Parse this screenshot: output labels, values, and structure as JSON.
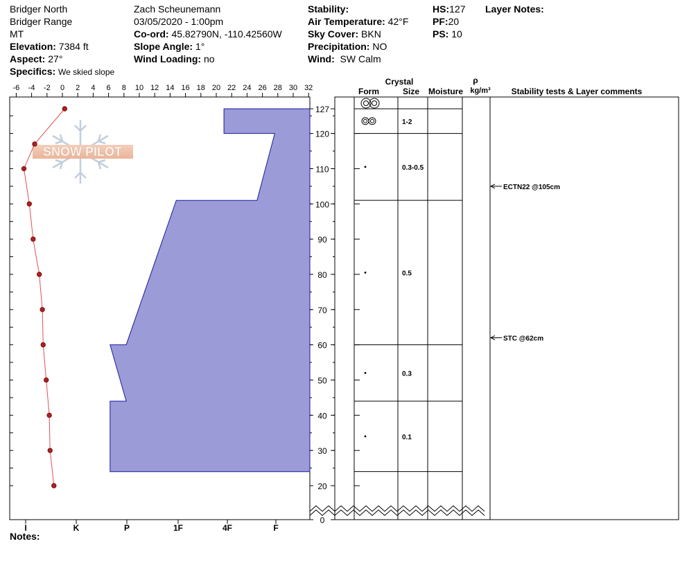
{
  "header": {
    "location_line1": "Bridger North",
    "location_line2": "Bridger Range",
    "location_line3": "MT",
    "elevation_label": "Elevation:",
    "elevation_value": "7384 ft",
    "aspect_label": "Aspect:",
    "aspect_value": "27°",
    "specifics_label": "Specifics:",
    "specifics_value": "We skied slope",
    "observer": "Zach Scheunemann",
    "datetime": "03/05/2020 - 1:00pm",
    "coord_label": "Co-ord:",
    "coord_value": "45.82790N, -110.42560W",
    "slope_label": "Slope Angle:",
    "slope_value": "1°",
    "wind_loading_label": "Wind Loading:",
    "wind_loading_value": "no",
    "stability_label": "Stability:",
    "stability_value": "",
    "air_temp_label": "Air Temperature:",
    "air_temp_value": "42°F",
    "sky_label": "Sky Cover:",
    "sky_value": "BKN",
    "precip_label": "Precipitation:",
    "precip_value": "NO",
    "wind_label": "Wind:",
    "wind_value": "SW Calm",
    "hs_label": "HS:",
    "hs_value": "127",
    "pf_label": "PF:",
    "pf_value": "20",
    "ps_label": "PS:",
    "ps_value": "10",
    "layer_notes_label": "Layer Notes:",
    "notes_label": "Notes:"
  },
  "logo": {
    "text": "SNOW PILOT"
  },
  "columns": {
    "crystal": "Crystal",
    "form": "Form",
    "size": "Size",
    "moisture": "Moisture",
    "rho": "ρ",
    "density_unit": "kg/m³",
    "comments": "Stability tests & Layer comments"
  },
  "chart_data": {
    "type": "snow-profile",
    "temperature_axis": {
      "ticks": [
        "-6",
        "-4",
        "-2",
        "0",
        "2",
        "4",
        "6",
        "8",
        "10",
        "12",
        "14",
        "16",
        "18",
        "20",
        "22",
        "24",
        "26",
        "28",
        "30",
        "32"
      ],
      "range": [
        -7,
        32
      ]
    },
    "hardness_axis": {
      "ticks": [
        "I",
        "K",
        "P",
        "1F",
        "4F",
        "F"
      ]
    },
    "depth_axis": {
      "ticks": [
        "127",
        "120",
        "110",
        "100",
        "90",
        "80",
        "70",
        "60",
        "50",
        "40",
        "30",
        "20",
        "0"
      ],
      "range": [
        0,
        127
      ]
    },
    "temperature_profile": [
      {
        "depth": 127,
        "temp": 0.3
      },
      {
        "depth": 117,
        "temp": -3.6
      },
      {
        "depth": 110,
        "temp": -5
      },
      {
        "depth": 100,
        "temp": -4.3
      },
      {
        "depth": 90,
        "temp": -3.8
      },
      {
        "depth": 80,
        "temp": -3
      },
      {
        "depth": 70,
        "temp": -2.6
      },
      {
        "depth": 60,
        "temp": -2.5
      },
      {
        "depth": 50,
        "temp": -2.1
      },
      {
        "depth": 40,
        "temp": -1.7
      },
      {
        "depth": 30,
        "temp": -1.6
      },
      {
        "depth": 20,
        "temp": -1.1
      }
    ],
    "hardness_polygon": [
      {
        "depth": 127,
        "hardness": 21
      },
      {
        "depth": 120,
        "hardness": 21
      },
      {
        "depth": 120,
        "hardness": 27.6
      },
      {
        "depth": 101,
        "hardness": 25.3
      },
      {
        "depth": 101,
        "hardness": 14.8
      },
      {
        "depth": 60,
        "hardness": 8.3
      },
      {
        "depth": 60,
        "hardness": 6.2
      },
      {
        "depth": 44,
        "hardness": 8.3
      },
      {
        "depth": 44,
        "hardness": 6.2
      },
      {
        "depth": 24,
        "hardness": 6.2
      },
      {
        "depth": 24,
        "hardness": 32
      }
    ],
    "layers": [
      {
        "top": 127,
        "bottom": 120,
        "size": "1-2",
        "form": "rounds"
      },
      {
        "top": 120,
        "bottom": 101,
        "size": "0.3-0.5",
        "form": "dot"
      },
      {
        "top": 101,
        "bottom": 60,
        "size": "0.5",
        "form": "dot"
      },
      {
        "top": 60,
        "bottom": 44,
        "size": "0.3",
        "form": "dot"
      },
      {
        "top": 44,
        "bottom": 24,
        "size": "0.1",
        "form": "dot"
      }
    ],
    "stability_tests": [
      {
        "depth": 105,
        "label": "ECTN22 @105cm"
      },
      {
        "depth": 62,
        "label": "STC @62cm"
      }
    ]
  }
}
